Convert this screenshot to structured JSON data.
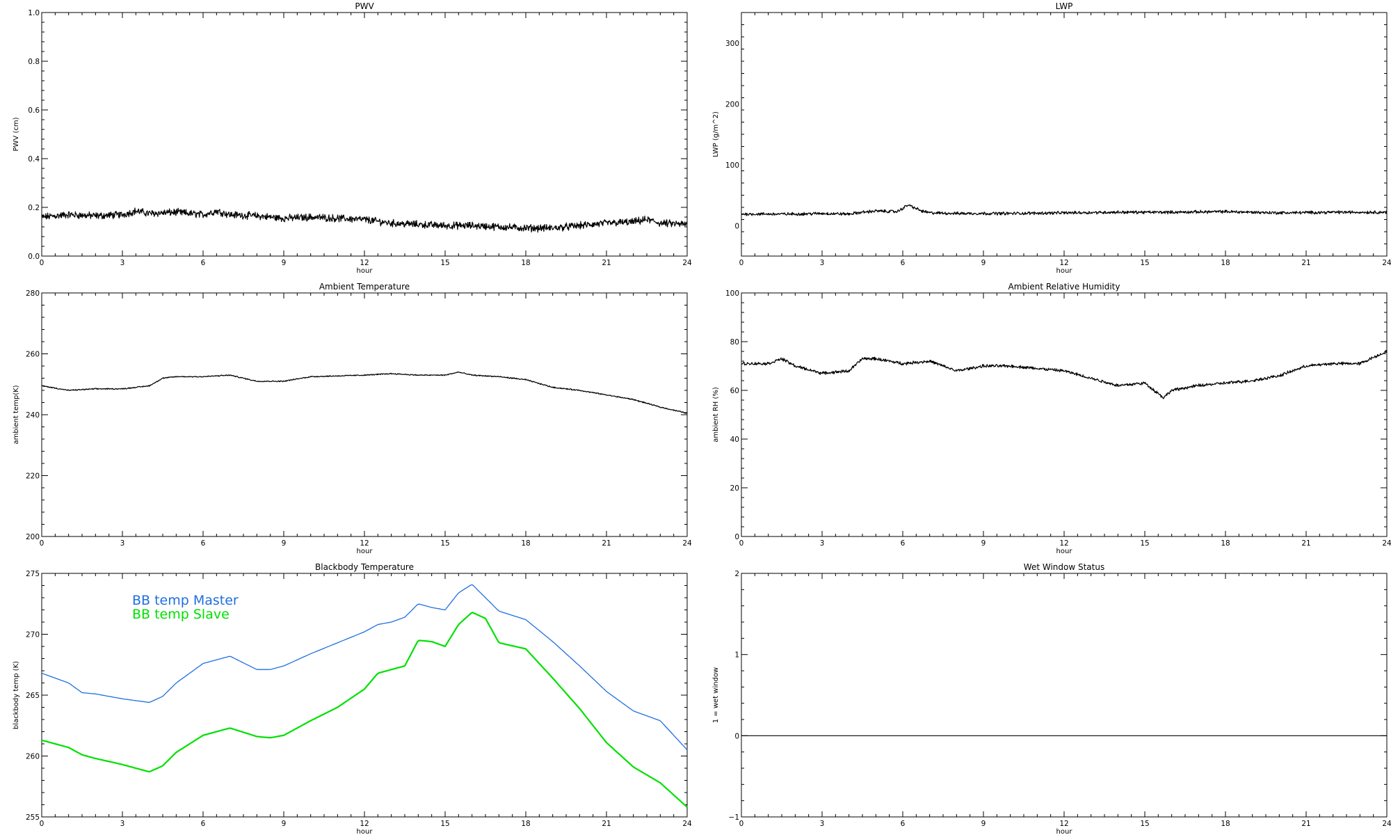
{
  "chart_data": [
    {
      "id": "pwv",
      "type": "line",
      "title": "PWV",
      "xlabel": "hour",
      "ylabel": "PWV (cm)",
      "xlim": [
        0,
        24
      ],
      "ylim": [
        0,
        1.0
      ],
      "xticks": [
        0,
        3,
        6,
        9,
        12,
        15,
        18,
        21,
        24
      ],
      "yticks": [
        0.0,
        0.2,
        0.4,
        0.6,
        0.8,
        1.0
      ],
      "ytick_labels": [
        "0.0",
        "0.2",
        "0.4",
        "0.6",
        "0.8",
        "1.0"
      ],
      "noise": 0.012,
      "series": [
        {
          "color": "#000000",
          "x": [
            0,
            1,
            2,
            3,
            3.5,
            4,
            5,
            6,
            6.5,
            7,
            8,
            9,
            10,
            11,
            12,
            13,
            14,
            15,
            16,
            17,
            18,
            19,
            20,
            21,
            22,
            22.5,
            23,
            24
          ],
          "y": [
            0.16,
            0.17,
            0.165,
            0.17,
            0.185,
            0.175,
            0.18,
            0.17,
            0.185,
            0.17,
            0.165,
            0.155,
            0.16,
            0.155,
            0.15,
            0.135,
            0.13,
            0.125,
            0.125,
            0.12,
            0.115,
            0.115,
            0.125,
            0.135,
            0.14,
            0.15,
            0.135,
            0.13
          ]
        }
      ]
    },
    {
      "id": "lwp",
      "type": "line",
      "title": "LWP",
      "xlabel": "hour",
      "ylabel": "LWP (g/m^2)",
      "xlim": [
        0,
        24
      ],
      "ylim": [
        -50,
        350
      ],
      "xticks": [
        0,
        3,
        6,
        9,
        12,
        15,
        18,
        21,
        24
      ],
      "yticks": [
        0,
        100,
        200,
        300
      ],
      "ytick_labels": [
        "0",
        "100",
        "200",
        "300"
      ],
      "noise": 2.0,
      "series": [
        {
          "color": "#000000",
          "x": [
            0,
            2,
            3,
            4,
            4.5,
            5,
            5.8,
            6.2,
            6.4,
            6.7,
            7,
            8,
            10,
            12,
            14,
            16,
            18,
            19,
            20,
            22,
            24
          ],
          "y": [
            19,
            19,
            20,
            19,
            22,
            24,
            23,
            34,
            30,
            24,
            21,
            20,
            20,
            21,
            22,
            22,
            23,
            22,
            21,
            22,
            22
          ]
        }
      ]
    },
    {
      "id": "ambient-temp",
      "type": "line",
      "title": "Ambient Temperature",
      "xlabel": "hour",
      "ylabel": "ambient temp(K)",
      "xlim": [
        0,
        24
      ],
      "ylim": [
        200,
        280
      ],
      "xticks": [
        0,
        3,
        6,
        9,
        12,
        15,
        18,
        21,
        24
      ],
      "yticks": [
        200,
        220,
        240,
        260,
        280
      ],
      "ytick_labels": [
        "200",
        "220",
        "240",
        "260",
        "280"
      ],
      "noise": 0.15,
      "series": [
        {
          "color": "#000000",
          "x": [
            0,
            1,
            2,
            3,
            4,
            4.5,
            5,
            6,
            7,
            8,
            9,
            10,
            12,
            13,
            14,
            15,
            15.5,
            16,
            17,
            18,
            19,
            20,
            21,
            22,
            23,
            24
          ],
          "y": [
            249.5,
            248,
            248.5,
            248.5,
            249.5,
            252,
            252.5,
            252.5,
            253,
            251,
            251,
            252.5,
            253,
            253.5,
            253,
            253,
            254,
            253,
            252.5,
            251.5,
            249,
            248,
            246.5,
            245,
            242.5,
            240.5
          ]
        }
      ]
    },
    {
      "id": "ambient-rh",
      "type": "line",
      "title": "Ambient Relative Humidity",
      "xlabel": "hour",
      "ylabel": "ambient RH (%)",
      "xlim": [
        0,
        24
      ],
      "ylim": [
        0,
        100
      ],
      "xticks": [
        0,
        3,
        6,
        9,
        12,
        15,
        18,
        21,
        24
      ],
      "yticks": [
        0,
        20,
        40,
        60,
        80,
        100
      ],
      "ytick_labels": [
        "0",
        "20",
        "40",
        "60",
        "80",
        "100"
      ],
      "noise": 0.5,
      "series": [
        {
          "color": "#000000",
          "x": [
            0,
            1,
            1.5,
            2,
            3,
            4,
            4.5,
            5,
            6,
            7,
            8,
            9,
            10,
            11,
            12,
            13,
            14,
            15,
            15.7,
            16,
            17,
            18,
            19,
            20,
            21,
            22,
            23,
            23.8,
            24
          ],
          "y": [
            71,
            71,
            73,
            70,
            67,
            68,
            73,
            73,
            71,
            72,
            68,
            70,
            70,
            69,
            68,
            65,
            62,
            63,
            57,
            60,
            62,
            63,
            64,
            66,
            70,
            71,
            71,
            75,
            76
          ]
        }
      ]
    },
    {
      "id": "blackbody-temp",
      "type": "line",
      "title": "Blackbody Temperature",
      "xlabel": "hour",
      "ylabel": "blackbody temp (K)",
      "xlim": [
        0,
        24
      ],
      "ylim": [
        255,
        275
      ],
      "xticks": [
        0,
        3,
        6,
        9,
        12,
        15,
        18,
        21,
        24
      ],
      "yticks": [
        255,
        260,
        265,
        270,
        275
      ],
      "ytick_labels": [
        "255",
        "260",
        "265",
        "270",
        "275"
      ],
      "noise": 0,
      "series": [
        {
          "name": "BB temp Master",
          "color": "#1f6fe0",
          "x": [
            0,
            1,
            1.5,
            2,
            3,
            4,
            4.5,
            5,
            6,
            7,
            8,
            8.5,
            9,
            10,
            11,
            12,
            12.5,
            13,
            13.5,
            14,
            14.5,
            15,
            15.5,
            16,
            16.5,
            17,
            18,
            19,
            20,
            21,
            22,
            23,
            24
          ],
          "y": [
            266.8,
            266.0,
            265.2,
            265.1,
            264.7,
            264.4,
            264.9,
            266.0,
            267.6,
            268.2,
            267.1,
            267.1,
            267.4,
            268.4,
            269.3,
            270.2,
            270.8,
            271.0,
            271.4,
            272.5,
            272.2,
            272.0,
            273.4,
            274.1,
            273.0,
            271.9,
            271.2,
            269.4,
            267.4,
            265.3,
            263.7,
            262.9,
            260.5
          ]
        },
        {
          "name": "BB temp Slave",
          "color": "#00e000",
          "x": [
            0,
            1,
            1.5,
            2,
            3,
            4,
            4.5,
            5,
            6,
            7,
            8,
            8.5,
            9,
            10,
            11,
            12,
            12.5,
            13,
            13.5,
            14,
            14.5,
            15,
            15.5,
            16,
            16.5,
            17,
            18,
            19,
            20,
            21,
            22,
            23,
            24
          ],
          "y": [
            261.3,
            260.7,
            260.1,
            259.8,
            259.3,
            258.7,
            259.2,
            260.3,
            261.7,
            262.3,
            261.6,
            261.5,
            261.7,
            262.9,
            264.0,
            265.5,
            266.8,
            267.1,
            267.4,
            269.5,
            269.4,
            269.0,
            270.8,
            271.8,
            271.3,
            269.3,
            268.8,
            266.4,
            263.9,
            261.1,
            259.1,
            257.8,
            255.8
          ]
        }
      ],
      "legend": [
        {
          "label": "BB temp Master",
          "color": "#1f6fe0"
        },
        {
          "label": "BB temp Slave",
          "color": "#00e000"
        }
      ],
      "legend_position": "top-left"
    },
    {
      "id": "wet-window",
      "type": "line",
      "title": "Wet Window Status",
      "xlabel": "hour",
      "ylabel": "1 = wet window",
      "xlim": [
        0,
        24
      ],
      "ylim": [
        -1,
        2
      ],
      "xticks": [
        0,
        3,
        6,
        9,
        12,
        15,
        18,
        21,
        24
      ],
      "yticks": [
        -1,
        0,
        1,
        2
      ],
      "ytick_labels": [
        "−1",
        "0",
        "1",
        "2"
      ],
      "noise": 0,
      "series": [
        {
          "color": "#000000",
          "x": [
            0,
            24
          ],
          "y": [
            0,
            0
          ]
        }
      ]
    }
  ]
}
